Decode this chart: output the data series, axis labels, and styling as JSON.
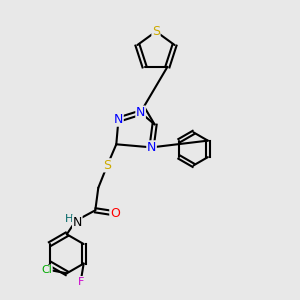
{
  "bg_color": "#e8e8e8",
  "atom_colors": {
    "C": "#000000",
    "N": "#0000ff",
    "S": "#ccaa00",
    "O": "#ff0000",
    "H": "#006666",
    "Cl": "#00aa00",
    "F": "#cc00cc"
  },
  "font_size": 9,
  "bond_lw": 1.5
}
